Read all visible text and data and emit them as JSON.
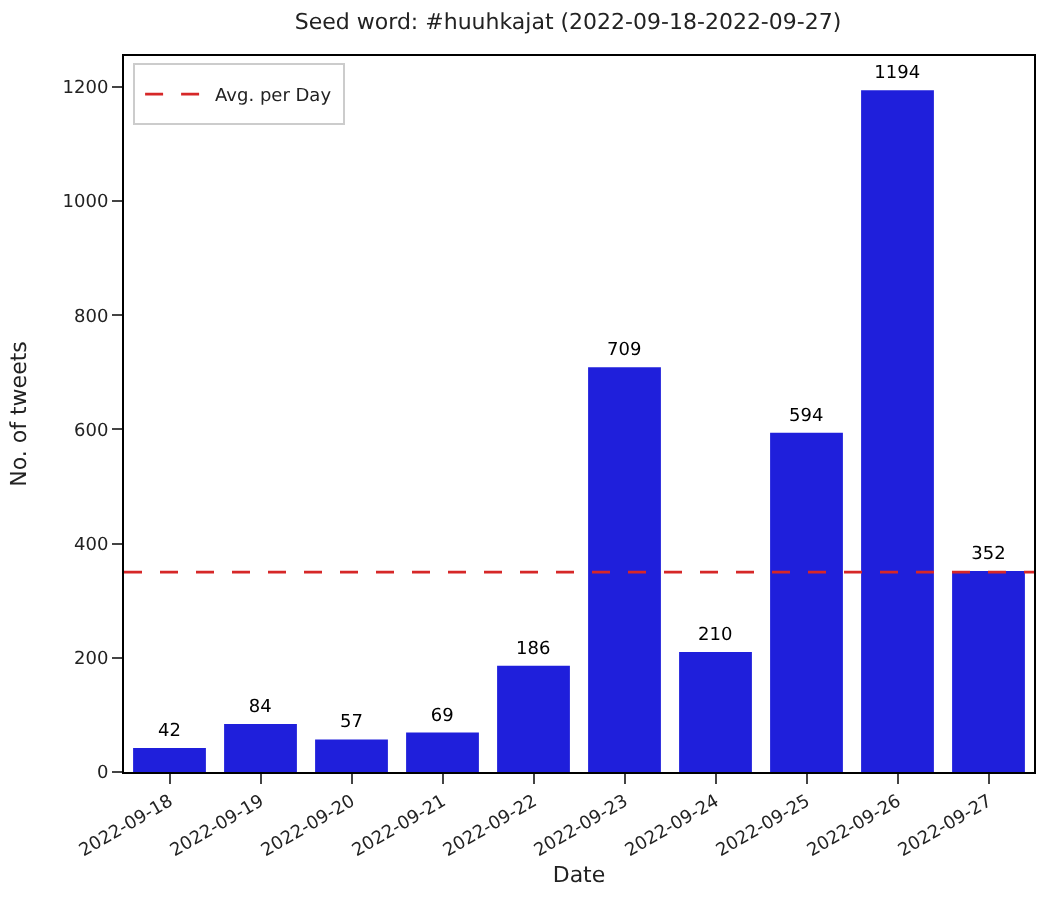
{
  "chart_data": {
    "type": "bar",
    "title": "Seed word: #huuhkajat (2022-09-18-2022-09-27)",
    "xlabel": "Date",
    "ylabel": "No. of tweets",
    "categories": [
      "2022-09-18",
      "2022-09-19",
      "2022-09-20",
      "2022-09-21",
      "2022-09-22",
      "2022-09-23",
      "2022-09-24",
      "2022-09-25",
      "2022-09-26",
      "2022-09-27"
    ],
    "values": [
      42,
      84,
      57,
      69,
      186,
      709,
      210,
      594,
      1194,
      352
    ],
    "color": "#1f1fdb",
    "data_labels": true,
    "ylim": [
      0,
      1254
    ],
    "yticks": [
      0,
      200,
      400,
      600,
      800,
      1000,
      1200
    ],
    "legend": "top left",
    "ref_lines": [
      {
        "axis": "y",
        "value": 350,
        "label": "Avg. per Day",
        "color": "#d62728",
        "line_style": "dashed"
      }
    ]
  }
}
